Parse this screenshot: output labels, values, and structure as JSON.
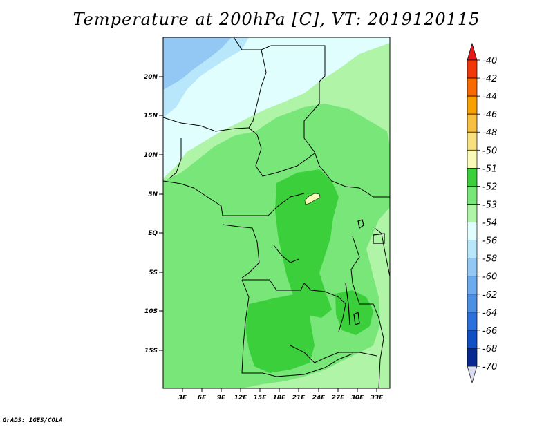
{
  "title": "Temperature at 200hPa [C], VT: 2019120115",
  "credit": "GrADS: IGES/COLA",
  "map": {
    "lat_ticks": [
      "20N",
      "15N",
      "10N",
      "5N",
      "EQ",
      "5S",
      "10S",
      "15S"
    ],
    "lon_ticks": [
      "3E",
      "6E",
      "9E",
      "12E",
      "15E",
      "18E",
      "21E",
      "24E",
      "27E",
      "30E",
      "33E"
    ]
  },
  "colorbar": {
    "labels": [
      "-40",
      "-42",
      "-44",
      "-46",
      "-48",
      "-50",
      "-51",
      "-52",
      "-53",
      "-54",
      "-56",
      "-58",
      "-60",
      "-62",
      "-64",
      "-66",
      "-68",
      "-70"
    ],
    "colors": {
      "top_arrow": "#e4181a",
      "levels": [
        "#f03808",
        "#f86a00",
        "#f8a000",
        "#f8c040",
        "#f8e080",
        "#fafab8",
        "#3ccf3c",
        "#78e678",
        "#b0f4a8",
        "#e0fefe",
        "#b8e6fa",
        "#94c8f4",
        "#6cacee",
        "#4c90e4",
        "#2c70dc",
        "#1050c4",
        "#062890"
      ],
      "bottom_arrow": "#dcdcf4"
    }
  }
}
